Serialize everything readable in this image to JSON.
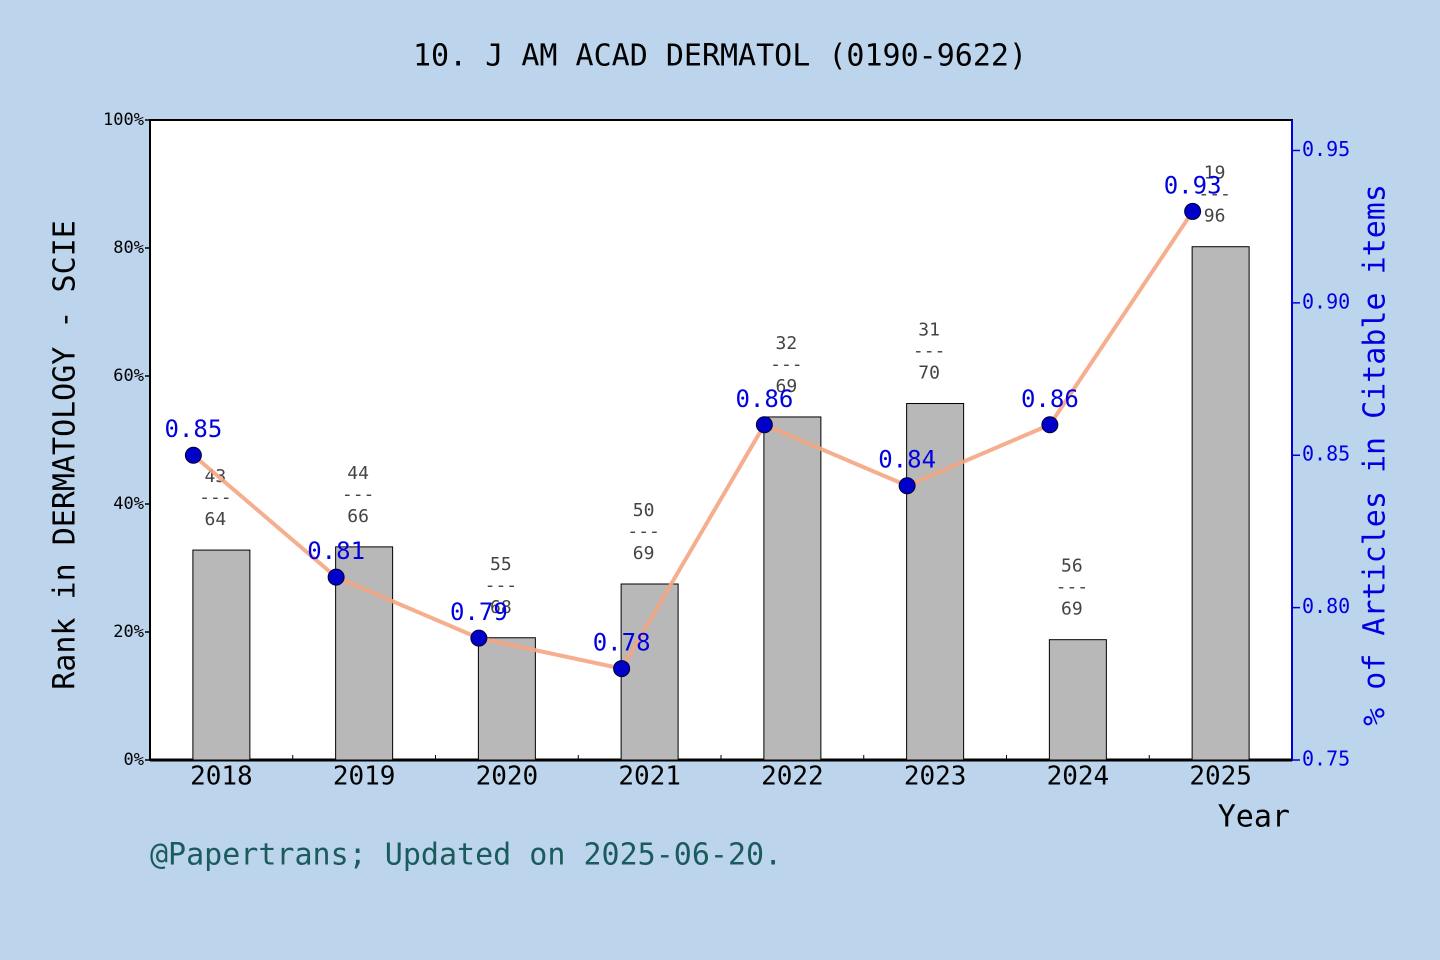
{
  "chart_data": {
    "type": "bar_line",
    "title": "10. J AM ACAD DERMATOL (0190-9622)",
    "xlabel": "Year",
    "ylabel": "Rank in DERMATOLOGY - SCIE",
    "y2label": "% of Articles in Citable items",
    "footer": "@Papertrans; Updated on 2025-06-20.",
    "categories": [
      "2018",
      "2019",
      "2020",
      "2021",
      "2022",
      "2023",
      "2024",
      "2025"
    ],
    "series": [
      {
        "name": "Rank",
        "color": "#b8b8b8",
        "values": [
          32.8,
          33.3,
          19.1,
          27.5,
          53.6,
          55.7,
          18.8,
          80.2
        ]
      },
      {
        "name": "% of Articles in Citable items",
        "color": "#f4a582",
        "marker_color": "#0000c8",
        "axis": "y2",
        "values": [
          0.85,
          0.81,
          0.79,
          0.78,
          0.86,
          0.84,
          0.86,
          0.93
        ]
      }
    ],
    "rank_labels": [
      {
        "rank": 43,
        "total": 64
      },
      {
        "rank": 44,
        "total": 66
      },
      {
        "rank": 55,
        "total": 68
      },
      {
        "rank": 50,
        "total": 69
      },
      {
        "rank": 32,
        "total": 69
      },
      {
        "rank": 31,
        "total": 70
      },
      {
        "rank": 56,
        "total": 69
      },
      {
        "rank": 19,
        "total": 96
      }
    ],
    "rank_separator": "---",
    "ylim": [
      0,
      100
    ],
    "yticks": [
      {
        "value": 0,
        "label": "0%"
      },
      {
        "value": 20,
        "label": "20%"
      },
      {
        "value": 40,
        "label": "40%"
      },
      {
        "value": 60,
        "label": "60%"
      },
      {
        "value": 80,
        "label": "80%"
      },
      {
        "value": 100,
        "label": "100%"
      }
    ],
    "y2lim": [
      0.75,
      0.96
    ],
    "y2ticks": [
      0.75,
      {
        "value": 0.8,
        "label": "0.80"
      },
      0.85,
      {
        "value": 0.9,
        "label": "0.90"
      },
      0.95
    ]
  }
}
